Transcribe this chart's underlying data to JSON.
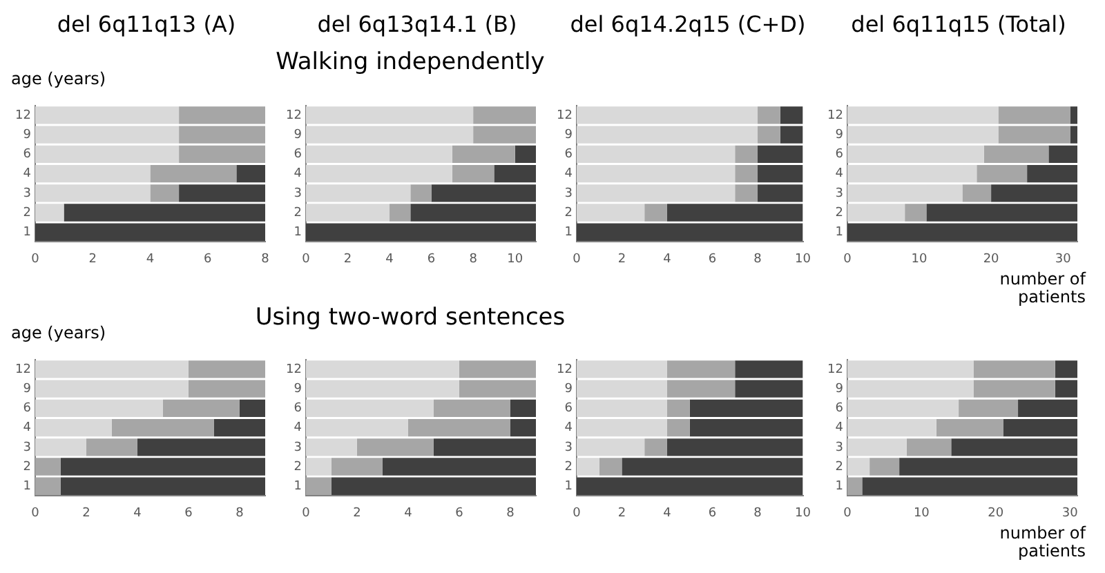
{
  "chart_data": [
    {
      "type": "bar",
      "orientation": "horizontal",
      "stacked": true,
      "title": "del 6q11q13 (A)",
      "ylabel": "age (years)",
      "categories": [
        "12",
        "9",
        "6",
        "4",
        "3",
        "2",
        "1"
      ],
      "xlim": [
        0,
        8
      ],
      "xticks": [
        0,
        2,
        4,
        6,
        8
      ],
      "series": [
        {
          "color": "#d9d9d9",
          "values": [
            5,
            5,
            5,
            4,
            4,
            1,
            0
          ]
        },
        {
          "color": "#a6a6a6",
          "values": [
            3,
            3,
            3,
            3,
            1,
            0,
            0
          ]
        },
        {
          "color": "#404040",
          "values": [
            0,
            0,
            0,
            1,
            3,
            7,
            8
          ]
        }
      ]
    },
    {
      "type": "bar",
      "orientation": "horizontal",
      "stacked": true,
      "title": "del 6q13q14.1 (B)",
      "subtitle": "Walking independently",
      "categories": [
        "12",
        "9",
        "6",
        "4",
        "3",
        "2",
        "1"
      ],
      "xlim": [
        0,
        11
      ],
      "xticks": [
        0,
        2,
        4,
        6,
        8,
        10
      ],
      "series": [
        {
          "color": "#d9d9d9",
          "values": [
            8,
            8,
            7,
            7,
            5,
            4,
            0
          ]
        },
        {
          "color": "#a6a6a6",
          "values": [
            3,
            3,
            3,
            2,
            1,
            1,
            0
          ]
        },
        {
          "color": "#404040",
          "values": [
            0,
            0,
            1,
            2,
            5,
            6,
            11
          ]
        }
      ]
    },
    {
      "type": "bar",
      "orientation": "horizontal",
      "stacked": true,
      "title": "del 6q14.2q15 (C+D)",
      "categories": [
        "12",
        "9",
        "6",
        "4",
        "3",
        "2",
        "1"
      ],
      "xlim": [
        0,
        10
      ],
      "xticks": [
        0,
        2,
        4,
        6,
        8,
        10
      ],
      "series": [
        {
          "color": "#d9d9d9",
          "values": [
            8,
            8,
            7,
            7,
            7,
            3,
            0
          ]
        },
        {
          "color": "#a6a6a6",
          "values": [
            1,
            1,
            1,
            1,
            1,
            1,
            0
          ]
        },
        {
          "color": "#404040",
          "values": [
            1,
            1,
            2,
            2,
            2,
            6,
            10
          ]
        }
      ]
    },
    {
      "type": "bar",
      "orientation": "horizontal",
      "stacked": true,
      "title": "del 6q11q15 (Total)",
      "xlabel": "number of patients",
      "categories": [
        "12",
        "9",
        "6",
        "4",
        "3",
        "2",
        "1"
      ],
      "xlim": [
        0,
        32
      ],
      "xticks": [
        0,
        10,
        20,
        30
      ],
      "series": [
        {
          "color": "#d9d9d9",
          "values": [
            21,
            21,
            19,
            18,
            16,
            8,
            0
          ]
        },
        {
          "color": "#a6a6a6",
          "values": [
            10,
            10,
            9,
            7,
            4,
            3,
            0
          ]
        },
        {
          "color": "#404040",
          "values": [
            1,
            1,
            4,
            7,
            12,
            21,
            32
          ]
        }
      ]
    },
    {
      "type": "bar",
      "orientation": "horizontal",
      "stacked": true,
      "ylabel": "age (years)",
      "categories": [
        "12",
        "9",
        "6",
        "4",
        "3",
        "2",
        "1"
      ],
      "xlim": [
        0,
        9
      ],
      "xticks": [
        0,
        2,
        4,
        6,
        8
      ],
      "series": [
        {
          "color": "#d9d9d9",
          "values": [
            6,
            6,
            5,
            3,
            2,
            0,
            0
          ]
        },
        {
          "color": "#a6a6a6",
          "values": [
            3,
            3,
            3,
            4,
            2,
            1,
            1
          ]
        },
        {
          "color": "#404040",
          "values": [
            0,
            0,
            1,
            2,
            5,
            8,
            8
          ]
        }
      ]
    },
    {
      "type": "bar",
      "orientation": "horizontal",
      "stacked": true,
      "subtitle": "Using two-word sentences",
      "categories": [
        "12",
        "9",
        "6",
        "4",
        "3",
        "2",
        "1"
      ],
      "xlim": [
        0,
        9
      ],
      "xticks": [
        0,
        2,
        4,
        6,
        8
      ],
      "series": [
        {
          "color": "#d9d9d9",
          "values": [
            6,
            6,
            5,
            4,
            2,
            1,
            0
          ]
        },
        {
          "color": "#a6a6a6",
          "values": [
            3,
            3,
            3,
            4,
            3,
            2,
            1
          ]
        },
        {
          "color": "#404040",
          "values": [
            0,
            0,
            1,
            1,
            4,
            6,
            8
          ]
        }
      ]
    },
    {
      "type": "bar",
      "orientation": "horizontal",
      "stacked": true,
      "categories": [
        "12",
        "9",
        "6",
        "4",
        "3",
        "2",
        "1"
      ],
      "xlim": [
        0,
        10
      ],
      "xticks": [
        0,
        2,
        4,
        6,
        8,
        10
      ],
      "series": [
        {
          "color": "#d9d9d9",
          "values": [
            4,
            4,
            4,
            4,
            3,
            1,
            0
          ]
        },
        {
          "color": "#a6a6a6",
          "values": [
            3,
            3,
            1,
            1,
            1,
            1,
            0
          ]
        },
        {
          "color": "#404040",
          "values": [
            3,
            3,
            5,
            5,
            6,
            8,
            10
          ]
        }
      ]
    },
    {
      "type": "bar",
      "orientation": "horizontal",
      "stacked": true,
      "xlabel": "number of patients",
      "categories": [
        "12",
        "9",
        "6",
        "4",
        "3",
        "2",
        "1"
      ],
      "xlim": [
        0,
        31
      ],
      "xticks": [
        0,
        10,
        20,
        30
      ],
      "series": [
        {
          "color": "#d9d9d9",
          "values": [
            17,
            17,
            15,
            12,
            8,
            3,
            0
          ]
        },
        {
          "color": "#a6a6a6",
          "values": [
            11,
            11,
            8,
            9,
            6,
            4,
            2
          ]
        },
        {
          "color": "#404040",
          "values": [
            3,
            3,
            8,
            10,
            17,
            24,
            29
          ]
        }
      ]
    }
  ]
}
